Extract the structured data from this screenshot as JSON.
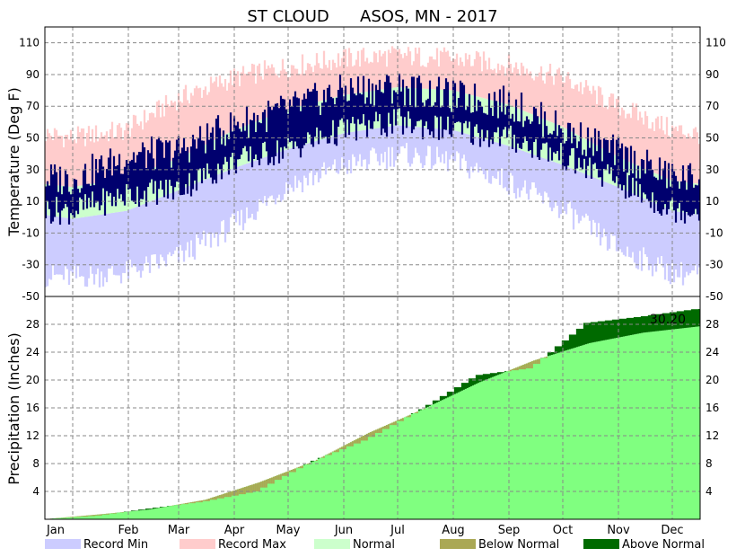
{
  "chart_data": {
    "type": "area",
    "title": "ST CLOUD      ASOS, MN - 2017",
    "months": [
      "Jan",
      "Feb",
      "Mar",
      "Apr",
      "May",
      "Jun",
      "Jul",
      "Aug",
      "Sep",
      "Oct",
      "Nov",
      "Dec"
    ],
    "temperature": {
      "ylabel": "Temperature (Deg F)",
      "ylim": [
        -50,
        120
      ],
      "ticks": [
        110,
        90,
        70,
        50,
        30,
        10,
        -10,
        -30,
        -50
      ],
      "grid": true,
      "normal_high_monthly": [
        19,
        25,
        37,
        55,
        68,
        77,
        82,
        80,
        71,
        57,
        38,
        23
      ],
      "normal_low_monthly": [
        -1,
        4,
        17,
        31,
        43,
        53,
        58,
        55,
        45,
        33,
        19,
        4
      ],
      "record_max_monthly": [
        50,
        55,
        75,
        88,
        95,
        100,
        102,
        100,
        96,
        88,
        70,
        55
      ],
      "record_min_monthly": [
        -38,
        -35,
        -25,
        -5,
        20,
        32,
        40,
        35,
        22,
        5,
        -20,
        -35
      ],
      "observed_high_monthly": [
        24,
        38,
        42,
        58,
        68,
        80,
        82,
        76,
        72,
        55,
        40,
        25
      ],
      "observed_low_monthly": [
        4,
        14,
        18,
        35,
        43,
        55,
        60,
        55,
        50,
        38,
        22,
        5
      ]
    },
    "precipitation": {
      "ylabel": "Precipitation (Inches)",
      "ylim": [
        0,
        32
      ],
      "ticks": [
        28,
        24,
        20,
        16,
        12,
        8,
        4
      ],
      "grid": true,
      "normal_cumulative_month_end": [
        0.7,
        1.4,
        2.8,
        5.3,
        8.4,
        12.4,
        15.9,
        19.7,
        22.8,
        25.3,
        26.8,
        27.7
      ],
      "observed_cumulative_month_end": [
        0.5,
        1.5,
        2.5,
        4.0,
        8.3,
        11.4,
        15.8,
        20.7,
        21.7,
        28.2,
        29.1,
        30.2
      ],
      "total_label": "30.20"
    },
    "legend": [
      {
        "label": "Record Min",
        "color": "#ccccff"
      },
      {
        "label": "Record Max",
        "color": "#ffcccc"
      },
      {
        "label": "Normal",
        "color": "#ccffcc"
      },
      {
        "label": "Below Normal",
        "color": "#aaa855"
      },
      {
        "label": "Above Normal",
        "color": "#006a00"
      }
    ],
    "legend_position": "bottom",
    "colors": {
      "observed_temp": "#00006e",
      "normal_precip": "#80ff80",
      "grid": "#888888"
    }
  }
}
